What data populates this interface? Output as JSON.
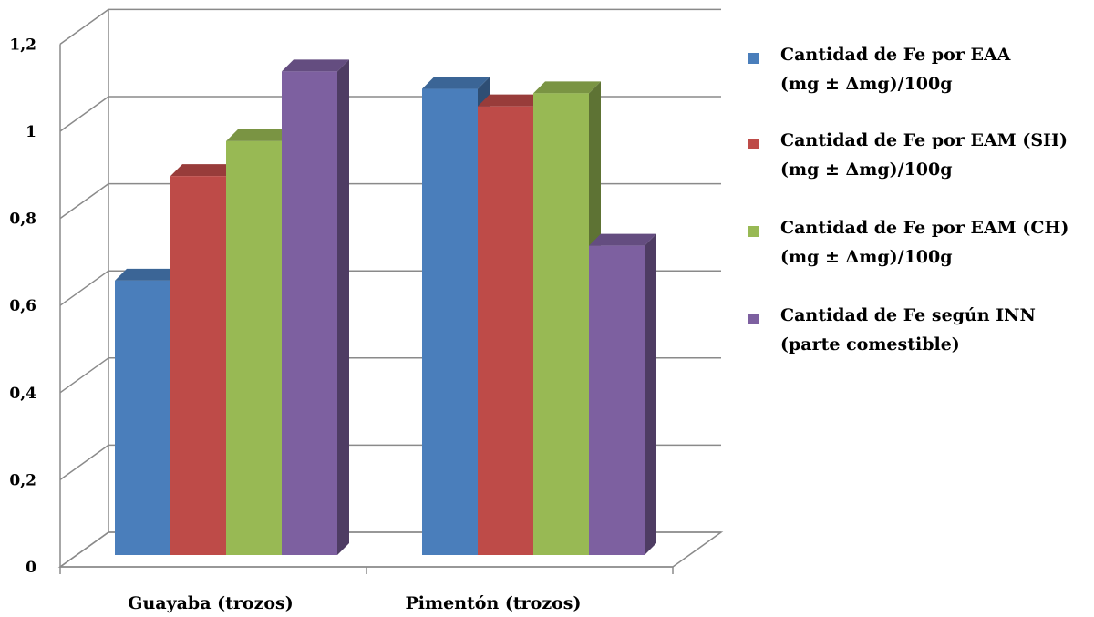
{
  "chart_data": {
    "type": "bar",
    "categories": [
      "Guayaba (trozos)",
      "Pimentón (trozos)"
    ],
    "series": [
      {
        "name": "Cantidad de Fe por EAA\n(mg ± Δmg)/100g",
        "values": [
          0.63,
          1.07
        ],
        "color": "#4a7ebb"
      },
      {
        "name": "Cantidad de Fe por EAM (SH)\n(mg ± Δmg)/100g",
        "values": [
          0.87,
          1.03
        ],
        "color": "#be4b48"
      },
      {
        "name": "Cantidad de Fe por EAM (CH)\n(mg ± Δmg)/100g",
        "values": [
          0.95,
          1.06
        ],
        "color": "#98b954"
      },
      {
        "name": "Cantidad de Fe según INN\n(parte comestible)",
        "values": [
          1.11,
          0.71
        ],
        "color": "#7d60a0"
      }
    ],
    "yticks": [
      "0",
      "0,2",
      "0,4",
      "0,6",
      "0,8",
      "1",
      "1,2"
    ],
    "ylim": [
      0,
      1.2
    ],
    "grid": true,
    "legend_position": "right",
    "style": "3d-clustered-column"
  }
}
